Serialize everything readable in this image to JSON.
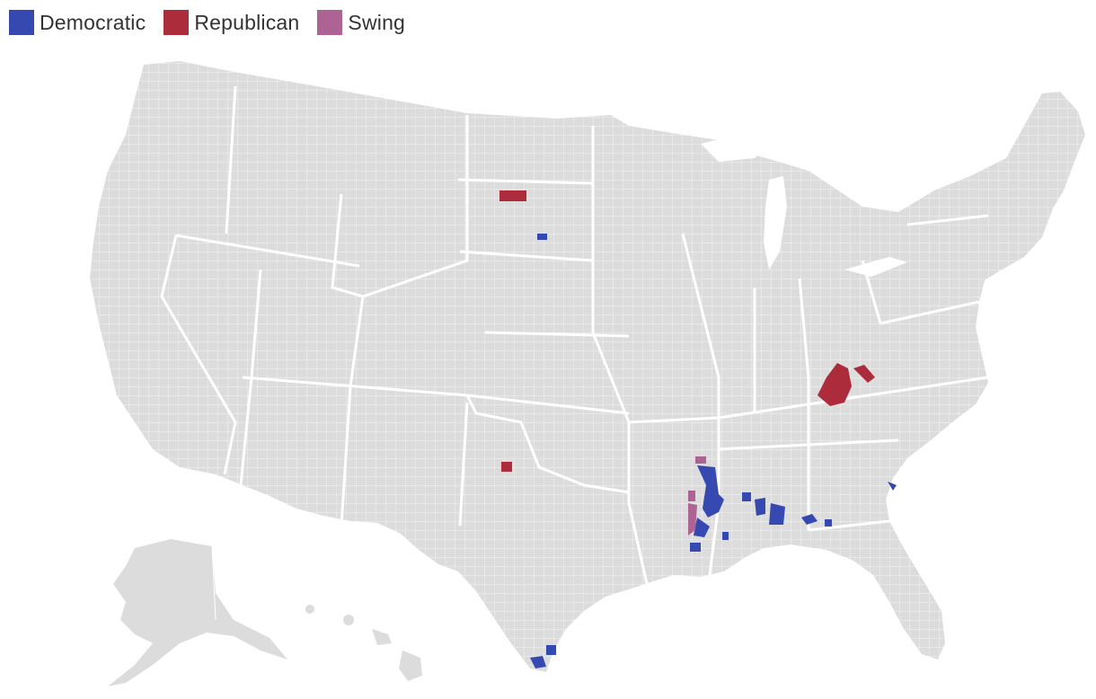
{
  "legend": {
    "items": [
      {
        "label": "Democratic",
        "color": "#3549b1"
      },
      {
        "label": "Republican",
        "color": "#ac2c3b"
      },
      {
        "label": "Swing",
        "color": "#ad6394"
      }
    ]
  },
  "map": {
    "land_color": "#dcdcdc",
    "border_color": "#ffffff",
    "regions": [
      "United States (contiguous)",
      "Alaska"
    ],
    "category_colors": {
      "democratic": "#3549b1",
      "republican": "#ac2c3b",
      "swing": "#ad6394"
    }
  }
}
